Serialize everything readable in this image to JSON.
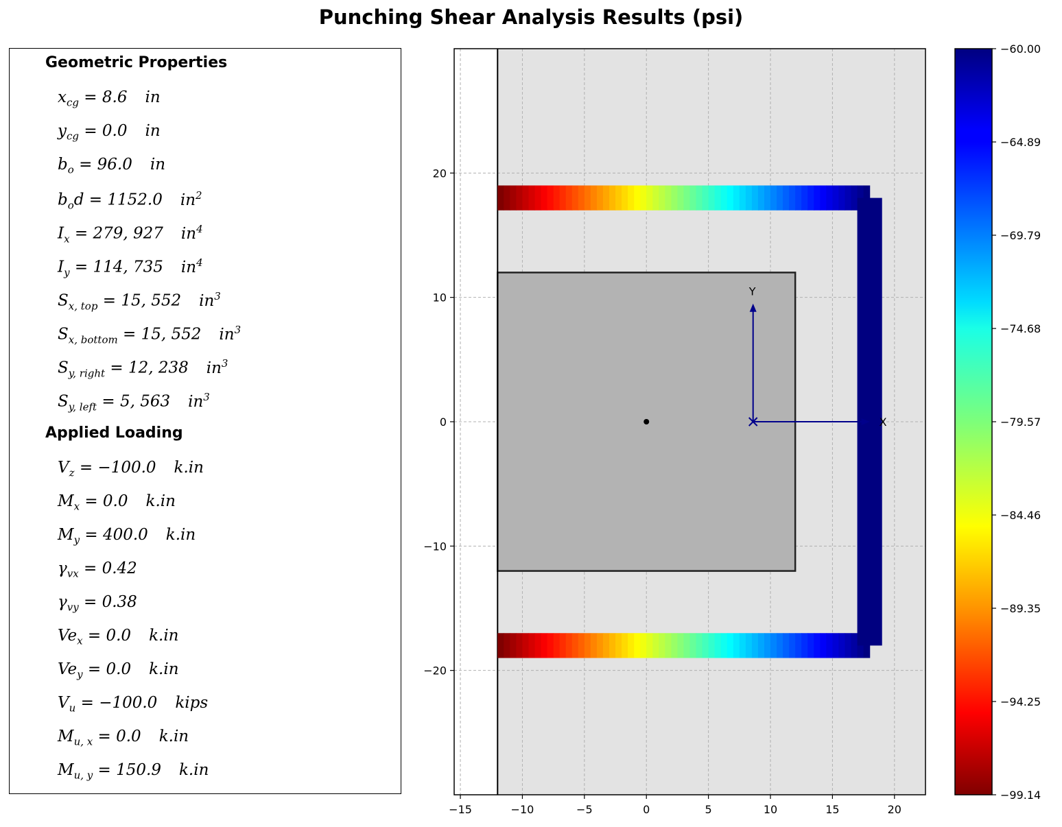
{
  "title": "Punching Shear Analysis Results (psi)",
  "geometric_properties": {
    "heading": "Geometric Properties",
    "items": [
      {
        "sym": "x",
        "sub": "cg",
        "sup": "",
        "value": "8.6",
        "unit": "in",
        "unit_sup": ""
      },
      {
        "sym": "y",
        "sub": "cg",
        "sup": "",
        "value": "0.0",
        "unit": "in",
        "unit_sup": ""
      },
      {
        "sym": "b",
        "sub": "o",
        "sup": "",
        "value": "96.0",
        "unit": "in",
        "unit_sup": ""
      },
      {
        "sym": "b",
        "sub": "o",
        "sup": "",
        "suffix": "d",
        "value": "1152.0",
        "unit": "in",
        "unit_sup": "2"
      },
      {
        "sym": "I",
        "sub": "x",
        "value": "279, 927",
        "unit": "in",
        "unit_sup": "4"
      },
      {
        "sym": "I",
        "sub": "y",
        "value": "114, 735",
        "unit": "in",
        "unit_sup": "4"
      },
      {
        "sym": "S",
        "sub": "x, top",
        "value": "15, 552",
        "unit": "in",
        "unit_sup": "3"
      },
      {
        "sym": "S",
        "sub": "x, bottom",
        "value": "15, 552",
        "unit": "in",
        "unit_sup": "3"
      },
      {
        "sym": "S",
        "sub": "y, right",
        "value": "12, 238",
        "unit": "in",
        "unit_sup": "3"
      },
      {
        "sym": "S",
        "sub": "y, left",
        "value": "5, 563",
        "unit": "in",
        "unit_sup": "3"
      }
    ]
  },
  "applied_loading": {
    "heading": "Applied Loading",
    "items": [
      {
        "sym": "V",
        "sub": "z",
        "value": "−100.0",
        "unit": "k.in",
        "unit_sup": ""
      },
      {
        "sym": "M",
        "sub": "x",
        "value": "0.0",
        "unit": "k.in",
        "unit_sup": ""
      },
      {
        "sym": "M",
        "sub": "y",
        "value": "400.0",
        "unit": "k.in",
        "unit_sup": ""
      },
      {
        "sym": "γ",
        "sub": "vx",
        "value": "0.42",
        "unit": "",
        "unit_sup": ""
      },
      {
        "sym": "γ",
        "sub": "vy",
        "value": "0.38",
        "unit": "",
        "unit_sup": ""
      },
      {
        "sym": "Ve",
        "sub": "x",
        "value": "0.0",
        "unit": "k.in",
        "unit_sup": ""
      },
      {
        "sym": "Ve",
        "sub": "y",
        "value": "0.0",
        "unit": "k.in",
        "unit_sup": ""
      },
      {
        "sym": "V",
        "sub": "u",
        "value": "−100.0",
        "unit": "kips",
        "unit_sup": ""
      },
      {
        "sym": "M",
        "sub": "u, x",
        "value": "0.0",
        "unit": "k.in",
        "unit_sup": ""
      },
      {
        "sym": "M",
        "sub": "u, y",
        "value": "150.9",
        "unit": "k.in",
        "unit_sup": ""
      }
    ]
  },
  "chart_data": {
    "type": "heatmap",
    "xlim": [
      -15.5,
      22.5
    ],
    "ylim": [
      -30,
      30
    ],
    "xticks": [
      -15,
      -10,
      -5,
      0,
      5,
      10,
      15,
      20
    ],
    "yticks": [
      -20,
      -10,
      0,
      10,
      20
    ],
    "xtick_labels": [
      "−15",
      "−10",
      "−5",
      "0",
      "5",
      "10",
      "15",
      "20"
    ],
    "ytick_labels": [
      "−20",
      "−10",
      "0",
      "10",
      "20"
    ],
    "grid": true,
    "colormap": "jet",
    "value_range": [
      -99.14,
      -60.0
    ],
    "colorbar_ticks": [
      "−60.00",
      "−64.89",
      "−69.79",
      "−74.68",
      "−79.57",
      "−84.46",
      "−89.35",
      "−94.25",
      "−99.14"
    ],
    "slab_region": {
      "x": [
        -12,
        22.5
      ],
      "y": [
        -30,
        30
      ],
      "color": "#e3e3e3"
    },
    "slab_edge_x": -12,
    "column": {
      "x": [
        -12,
        12
      ],
      "y": [
        -12,
        12
      ],
      "color": "#b3b3b3"
    },
    "column_center": [
      0,
      0
    ],
    "critical_section": [
      {
        "side": "top",
        "x": [
          -12,
          18
        ],
        "y": [
          17,
          19
        ],
        "stress_start": -60.0,
        "stress_end": -99.14
      },
      {
        "side": "bottom",
        "x": [
          -12,
          18
        ],
        "y": [
          -19,
          -17
        ],
        "stress_start": -60.0,
        "stress_end": -99.14
      },
      {
        "side": "right",
        "x": [
          17,
          19
        ],
        "y": [
          -18,
          18
        ],
        "stress": -99.14
      }
    ],
    "centroid_axes": {
      "origin": [
        8.6,
        0.0
      ],
      "x_end": 18,
      "y_end": 9.5,
      "x_label": "X",
      "y_label": "Y",
      "color": "#00008b"
    }
  }
}
